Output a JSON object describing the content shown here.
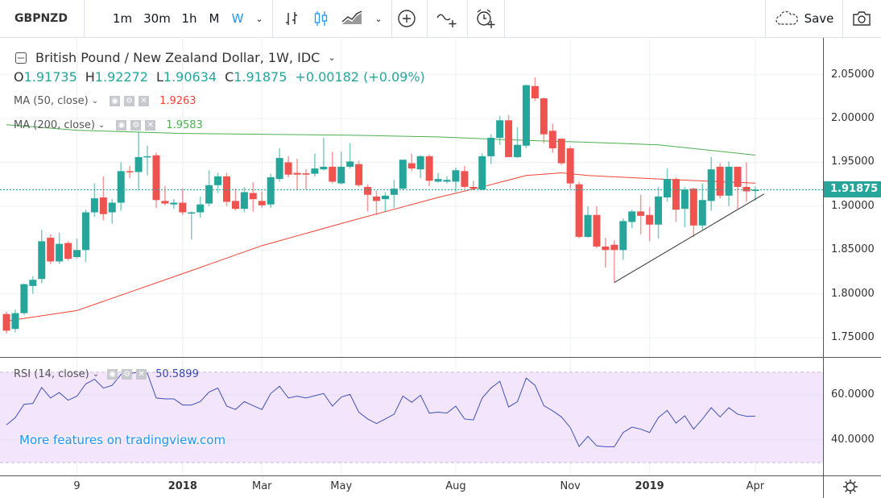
{
  "toolbar": {
    "symbol": "GBPNZD",
    "intervals": [
      "1m",
      "30m",
      "1h",
      "M",
      "W"
    ],
    "active_interval": "W",
    "save_label": "Save",
    "icons": [
      "bars-icon",
      "candles-icon",
      "area-icon",
      "compare-plus-icon",
      "indicators-icon",
      "alert-icon",
      "cloud-icon",
      "camera-icon"
    ]
  },
  "legend": {
    "title": "British Pound / New Zealand Dollar, 1W, IDC",
    "o_label": "O",
    "o": "1.91735",
    "h_label": "H",
    "h": "1.92272",
    "l_label": "L",
    "l": "1.90634",
    "c_label": "C",
    "c": "1.91875",
    "change": "+0.00182 (+0.09%)",
    "ma50_label": "MA (50, close)",
    "ma50_value": "1.9263",
    "ma200_label": "MA (200, close)",
    "ma200_value": "1.9583",
    "rsi_label": "RSI (14, close)",
    "rsi_value": "50.5899"
  },
  "promo": "More features on tradingview.com",
  "colors": {
    "up": "#26a69a",
    "down": "#ef5350",
    "ma50": "#f44336",
    "ma200": "#4caf50",
    "rsi": "#3f51b5",
    "rsi_band": "#f3e6fc",
    "accent": "#2196f3",
    "trendline": "#333333"
  },
  "chart_data": [
    {
      "type": "candlestick",
      "ylim": [
        1.728,
        2.092
      ],
      "grid": true,
      "yticks": [
        "2.05000",
        "2.00000",
        "1.95000",
        "1.90000",
        "1.85000",
        "1.80000",
        "1.75000"
      ],
      "last_price": "1.91875",
      "xticks": [
        [
          "9",
          "2017-10-09"
        ],
        [
          "2018",
          "2018-01-01"
        ],
        [
          "Mar",
          "2018-03-05"
        ],
        [
          "May",
          "2018-05-07"
        ],
        [
          "Aug",
          "2018-08-06"
        ],
        [
          "Nov",
          "2018-11-05"
        ],
        [
          "2019",
          "2019-01-07"
        ],
        [
          "Apr",
          "2019-04-01"
        ]
      ],
      "candles": [
        [
          "2017-08-14",
          1.777,
          1.78,
          1.755,
          1.758
        ],
        [
          "2017-08-21",
          1.76,
          1.782,
          1.756,
          1.778
        ],
        [
          "2017-08-28",
          1.778,
          1.812,
          1.776,
          1.811
        ],
        [
          "2017-09-04",
          1.809,
          1.82,
          1.8,
          1.816
        ],
        [
          "2017-09-11",
          1.817,
          1.873,
          1.812,
          1.86
        ],
        [
          "2017-09-18",
          1.864,
          1.868,
          1.834,
          1.837
        ],
        [
          "2017-09-25",
          1.837,
          1.87,
          1.834,
          1.857
        ],
        [
          "2017-10-02",
          1.858,
          1.86,
          1.838,
          1.84
        ],
        [
          "2017-10-09",
          1.842,
          1.863,
          1.84,
          1.85
        ],
        [
          "2017-10-16",
          1.85,
          1.896,
          1.836,
          1.893
        ],
        [
          "2017-10-23",
          1.893,
          1.926,
          1.888,
          1.909
        ],
        [
          "2017-10-30",
          1.91,
          1.934,
          1.884,
          1.891
        ],
        [
          "2017-11-06",
          1.893,
          1.908,
          1.88,
          1.904
        ],
        [
          "2017-11-13",
          1.904,
          1.95,
          1.895,
          1.94
        ],
        [
          "2017-11-20",
          1.94,
          1.946,
          1.932,
          1.939
        ],
        [
          "2017-11-27",
          1.939,
          1.985,
          1.918,
          1.956
        ],
        [
          "2017-12-04",
          1.956,
          1.969,
          1.935,
          1.957
        ],
        [
          "2017-12-11",
          1.958,
          1.961,
          1.898,
          1.907
        ],
        [
          "2017-12-18",
          1.906,
          1.923,
          1.901,
          1.903
        ],
        [
          "2017-12-25",
          1.902,
          1.908,
          1.897,
          1.904
        ],
        [
          "2018-01-01",
          1.904,
          1.92,
          1.89,
          1.893
        ],
        [
          "2018-01-08",
          1.893,
          1.894,
          1.862,
          1.893
        ],
        [
          "2018-01-15",
          1.893,
          1.911,
          1.887,
          1.902
        ],
        [
          "2018-01-22",
          1.903,
          1.941,
          1.9,
          1.924
        ],
        [
          "2018-01-29",
          1.924,
          1.938,
          1.915,
          1.934
        ],
        [
          "2018-02-05",
          1.934,
          1.938,
          1.9,
          1.905
        ],
        [
          "2018-02-12",
          1.906,
          1.92,
          1.895,
          1.897
        ],
        [
          "2018-02-19",
          1.897,
          1.922,
          1.893,
          1.916
        ],
        [
          "2018-02-26",
          1.915,
          1.927,
          1.894,
          1.908
        ],
        [
          "2018-03-05",
          1.906,
          1.917,
          1.898,
          1.901
        ],
        [
          "2018-03-12",
          1.902,
          1.937,
          1.898,
          1.933
        ],
        [
          "2018-03-19",
          1.931,
          1.966,
          1.928,
          1.955
        ],
        [
          "2018-03-26",
          1.95,
          1.957,
          1.933,
          1.936
        ],
        [
          "2018-04-02",
          1.938,
          1.954,
          1.919,
          1.936
        ],
        [
          "2018-04-09",
          1.9375,
          1.942,
          1.919,
          1.936
        ],
        [
          "2018-04-16",
          1.937,
          1.96,
          1.934,
          1.943
        ],
        [
          "2018-04-23",
          1.942,
          1.978,
          1.941,
          1.945
        ],
        [
          "2018-04-30",
          1.945,
          1.962,
          1.926,
          1.928
        ],
        [
          "2018-05-07",
          1.926,
          1.962,
          1.925,
          1.945
        ],
        [
          "2018-05-14",
          1.945,
          1.972,
          1.943,
          1.951
        ],
        [
          "2018-05-21",
          1.948,
          1.952,
          1.922,
          1.924
        ],
        [
          "2018-05-28",
          1.922,
          1.925,
          1.894,
          1.913
        ],
        [
          "2018-06-04",
          1.911,
          1.918,
          1.89,
          1.906
        ],
        [
          "2018-06-11",
          1.908,
          1.916,
          1.893,
          1.912
        ],
        [
          "2018-06-18",
          1.913,
          1.93,
          1.898,
          1.92
        ],
        [
          "2018-06-25",
          1.92,
          1.953,
          1.918,
          1.953
        ],
        [
          "2018-07-02",
          1.949,
          1.96,
          1.94,
          1.943
        ],
        [
          "2018-07-09",
          1.942,
          1.958,
          1.932,
          1.957
        ],
        [
          "2018-07-16",
          1.957,
          1.959,
          1.923,
          1.929
        ],
        [
          "2018-07-23",
          1.928,
          1.938,
          1.927,
          1.931
        ],
        [
          "2018-07-30",
          1.928,
          1.934,
          1.926,
          1.93
        ],
        [
          "2018-08-06",
          1.928,
          1.944,
          1.916,
          1.941
        ],
        [
          "2018-08-13",
          1.94,
          1.946,
          1.92,
          1.922
        ],
        [
          "2018-08-20",
          1.922,
          1.929,
          1.918,
          1.92
        ],
        [
          "2018-08-27",
          1.919,
          1.96,
          1.918,
          1.957
        ],
        [
          "2018-09-03",
          1.957,
          1.982,
          1.948,
          1.978
        ],
        [
          "2018-09-10",
          1.978,
          2.003,
          1.97,
          1.998
        ],
        [
          "2018-09-17",
          1.998,
          2.004,
          1.956,
          1.956
        ],
        [
          "2018-09-24",
          1.956,
          1.99,
          1.955,
          1.97
        ],
        [
          "2018-10-01",
          1.969,
          2.039,
          1.966,
          2.038
        ],
        [
          "2018-10-08",
          2.037,
          2.047,
          2.02,
          2.023
        ],
        [
          "2018-10-15",
          2.023,
          2.024,
          1.972,
          1.982
        ],
        [
          "2018-10-22",
          1.986,
          1.994,
          1.961,
          1.966
        ],
        [
          "2018-10-29",
          1.977,
          1.977,
          1.947,
          1.949
        ],
        [
          "2018-11-05",
          1.966,
          1.968,
          1.92,
          1.926
        ],
        [
          "2018-11-12",
          1.925,
          1.928,
          1.863,
          1.865
        ],
        [
          "2018-11-19",
          1.865,
          1.9,
          1.864,
          1.89
        ],
        [
          "2018-11-26",
          1.89,
          1.9,
          1.852,
          1.854
        ],
        [
          "2018-12-03",
          1.854,
          1.864,
          1.83,
          1.85
        ],
        [
          "2018-12-10",
          1.856,
          1.861,
          1.813,
          1.85
        ],
        [
          "2018-12-17",
          1.85,
          1.886,
          1.839,
          1.883
        ],
        [
          "2018-12-24",
          1.882,
          1.896,
          1.875,
          1.894
        ],
        [
          "2018-12-31",
          1.894,
          1.913,
          1.868,
          1.889
        ],
        [
          "2019-01-07",
          1.89,
          1.899,
          1.86,
          1.879
        ],
        [
          "2019-01-14",
          1.879,
          1.922,
          1.863,
          1.911
        ],
        [
          "2019-01-21",
          1.91,
          1.943,
          1.905,
          1.931
        ],
        [
          "2019-01-28",
          1.931,
          1.933,
          1.882,
          1.896
        ],
        [
          "2019-02-04",
          1.897,
          1.922,
          1.876,
          1.919
        ],
        [
          "2019-02-11",
          1.92,
          1.921,
          1.865,
          1.878
        ],
        [
          "2019-02-18",
          1.878,
          1.926,
          1.873,
          1.907
        ],
        [
          "2019-02-25",
          1.906,
          1.956,
          1.895,
          1.942
        ],
        [
          "2019-03-04",
          1.945,
          1.949,
          1.909,
          1.912
        ],
        [
          "2019-03-11",
          1.912,
          1.951,
          1.9,
          1.945
        ],
        [
          "2019-03-18",
          1.945,
          1.944,
          1.896,
          1.922
        ],
        [
          "2019-03-25",
          1.922,
          1.95,
          1.905,
          1.91693
        ],
        [
          "2019-04-01",
          1.91735,
          1.92272,
          1.90634,
          1.91875
        ]
      ],
      "ma50": [
        [
          "2017-08-14",
          1.769
        ],
        [
          "2017-10-09",
          1.781
        ],
        [
          "2018-01-01",
          1.823
        ],
        [
          "2018-03-05",
          1.855
        ],
        [
          "2018-05-14",
          1.883
        ],
        [
          "2018-07-23",
          1.91
        ],
        [
          "2018-08-27",
          1.922
        ],
        [
          "2018-10-01",
          1.935
        ],
        [
          "2018-10-29",
          1.938
        ],
        [
          "2018-11-19",
          1.935
        ],
        [
          "2019-01-14",
          1.931
        ],
        [
          "2019-04-01",
          1.9263
        ]
      ],
      "ma200": [
        [
          "2017-08-14",
          1.993
        ],
        [
          "2017-10-09",
          1.9866
        ],
        [
          "2018-01-01",
          1.983
        ],
        [
          "2018-03-05",
          1.982
        ],
        [
          "2018-05-14",
          1.981
        ],
        [
          "2018-07-23",
          1.979
        ],
        [
          "2018-10-01",
          1.975
        ],
        [
          "2018-11-19",
          1.973
        ],
        [
          "2019-01-14",
          1.97
        ],
        [
          "2019-04-01",
          1.9583
        ]
      ],
      "trendline": [
        [
          "2018-12-10",
          1.813
        ],
        [
          "2019-04-08",
          1.914
        ]
      ]
    },
    {
      "type": "line",
      "name": "RSI (14, close)",
      "ylim": [
        24.3,
        76.4
      ],
      "bands": [
        30,
        70
      ],
      "yticks": [
        "60.0000",
        "40.0000"
      ],
      "values": [
        46.7,
        49.9,
        55.8,
        56.2,
        63.3,
        58.6,
        61,
        57.6,
        59.4,
        64.8,
        66.9,
        63,
        64.2,
        69,
        69.5,
        70,
        69.5,
        58.6,
        58.2,
        58.2,
        55.5,
        55.5,
        57,
        61.2,
        63,
        55,
        53.5,
        57,
        55.2,
        53.5,
        60.6,
        63.8,
        58.6,
        59.4,
        58.6,
        59.6,
        60.6,
        55,
        59,
        60.2,
        52.3,
        49.3,
        47.3,
        49.3,
        51.4,
        59.4,
        56.7,
        59.8,
        51.9,
        52.3,
        51.9,
        55,
        49.3,
        48.9,
        58.6,
        63,
        66,
        54.6,
        57,
        67.4,
        64.2,
        55.2,
        52.9,
        50.2,
        45.5,
        37.1,
        41.6,
        37.4,
        37,
        37,
        43.3,
        45.7,
        44.8,
        43.3,
        49.9,
        53.1,
        47.5,
        50.7,
        44.8,
        49.3,
        54.3,
        50.2,
        54.3,
        51.4,
        50.5,
        50.5899
      ]
    }
  ]
}
